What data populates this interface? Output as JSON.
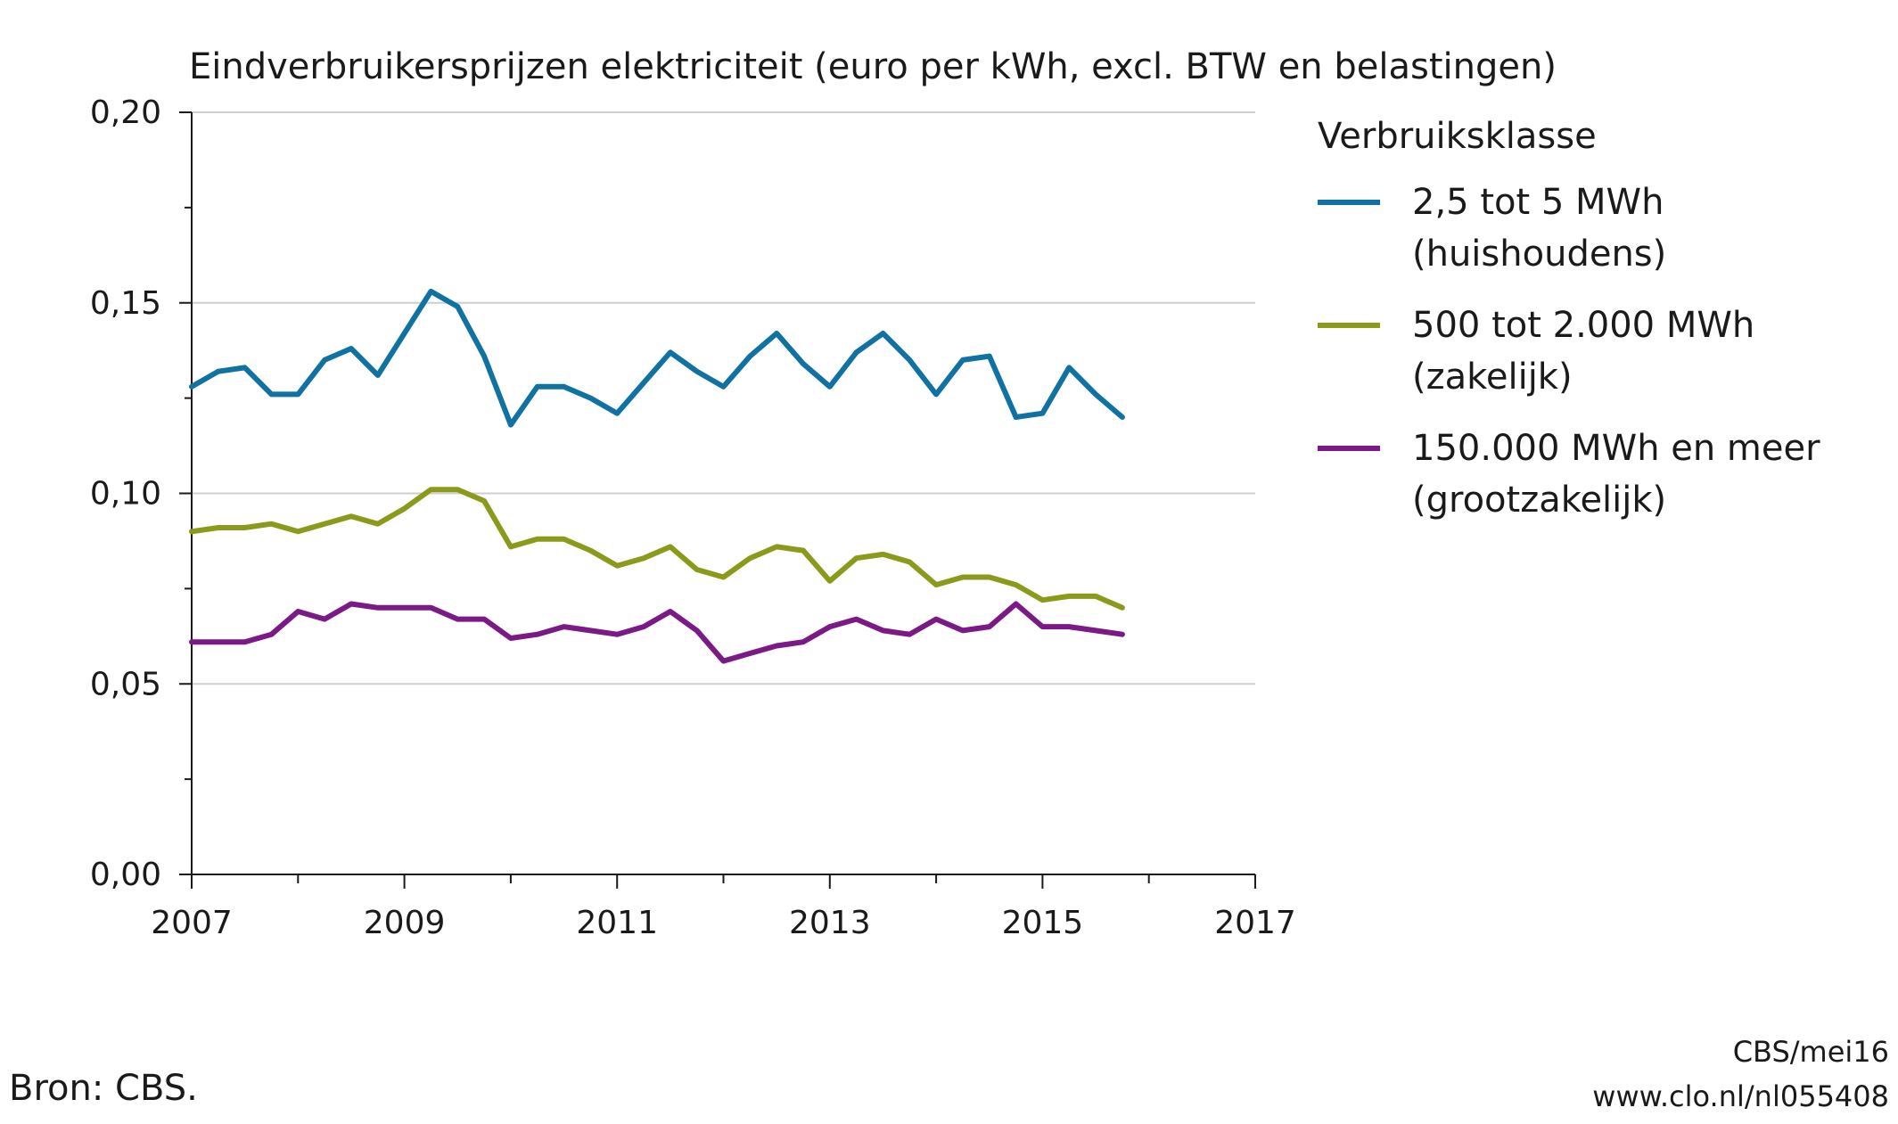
{
  "chart_data": {
    "type": "line",
    "title": "Eindverbruikersprijzen elektriciteit (euro per kWh, excl. BTW en belastingen)",
    "xlabel": "",
    "ylabel": "",
    "xlim": [
      2007,
      2017
    ],
    "ylim": [
      0,
      0.2
    ],
    "x_ticks": [
      2007,
      2009,
      2011,
      2013,
      2015,
      2017
    ],
    "x_tick_labels": [
      "2007",
      "2009",
      "2011",
      "2013",
      "2015",
      "2017"
    ],
    "y_ticks": [
      0,
      0.05,
      0.1,
      0.15,
      0.2
    ],
    "y_tick_labels": [
      "0,00",
      "0,05",
      "0,10",
      "0,15",
      "0,20"
    ],
    "grid": "horizontal",
    "legend_placement": "right",
    "legend_title": "Verbruiksklasse",
    "x": [
      2007.0,
      2007.25,
      2007.5,
      2007.75,
      2008.0,
      2008.25,
      2008.5,
      2008.75,
      2009.0,
      2009.25,
      2009.5,
      2009.75,
      2010.0,
      2010.25,
      2010.5,
      2010.75,
      2011.0,
      2011.25,
      2011.5,
      2011.75,
      2012.0,
      2012.25,
      2012.5,
      2012.75,
      2013.0,
      2013.25,
      2013.5,
      2013.75,
      2014.0,
      2014.25,
      2014.5,
      2014.75,
      2015.0,
      2015.25,
      2015.5,
      2015.75
    ],
    "series": [
      {
        "name": "2,5 tot 5 MWh",
        "name_line2": "(huishoudens)",
        "color": "#0f72a3",
        "values": [
          0.128,
          0.132,
          0.133,
          0.126,
          0.126,
          0.135,
          0.138,
          0.131,
          0.142,
          0.153,
          0.149,
          0.136,
          0.118,
          0.128,
          0.128,
          0.125,
          0.121,
          0.129,
          0.137,
          0.132,
          0.128,
          0.136,
          0.142,
          0.134,
          0.128,
          0.137,
          0.142,
          0.135,
          0.126,
          0.135,
          0.136,
          0.12,
          0.121,
          0.133,
          0.126,
          0.12
        ]
      },
      {
        "name": "500 tot 2.000 MWh",
        "name_line2": "(zakelijk)",
        "color": "#8b9a1b",
        "values": [
          0.09,
          0.091,
          0.091,
          0.092,
          0.09,
          0.092,
          0.094,
          0.092,
          0.096,
          0.101,
          0.101,
          0.098,
          0.086,
          0.088,
          0.088,
          0.085,
          0.081,
          0.083,
          0.086,
          0.08,
          0.078,
          0.083,
          0.086,
          0.085,
          0.077,
          0.083,
          0.084,
          0.082,
          0.076,
          0.078,
          0.078,
          0.076,
          0.072,
          0.073,
          0.073,
          0.07
        ]
      },
      {
        "name": "150.000 MWh en meer",
        "name_line2": "(grootzakelijk)",
        "color": "#7b1a86",
        "values": [
          0.061,
          0.061,
          0.061,
          0.063,
          0.069,
          0.067,
          0.071,
          0.07,
          0.07,
          0.07,
          0.067,
          0.067,
          0.062,
          0.063,
          0.065,
          0.064,
          0.063,
          0.065,
          0.069,
          0.064,
          0.056,
          0.058,
          0.06,
          0.061,
          0.065,
          0.067,
          0.064,
          0.063,
          0.067,
          0.064,
          0.065,
          0.071,
          0.065,
          0.065,
          0.064,
          0.063
        ]
      }
    ]
  },
  "footer": {
    "source": "Bron: CBS.",
    "credit_line1": "CBS/mei16",
    "credit_line2": "www.clo.nl/nl055408"
  }
}
